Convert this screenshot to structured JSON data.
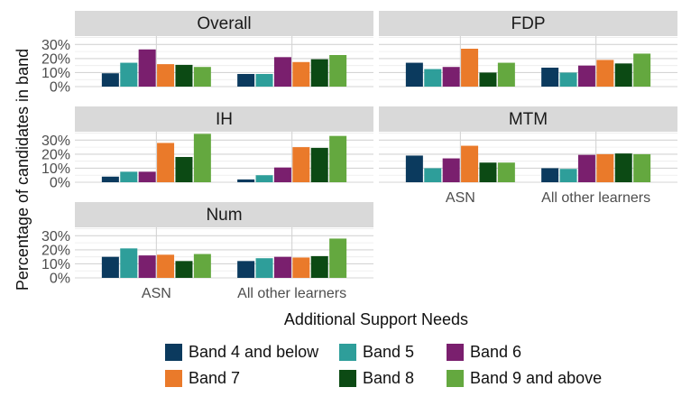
{
  "chart_data": {
    "type": "bar",
    "xlabel": "Additional Support Needs",
    "ylabel": "Percentage of candidates in band",
    "categories": [
      "ASN",
      "All other learners"
    ],
    "y_ticks": [
      "0%",
      "10%",
      "20%",
      "30%"
    ],
    "ylim": [
      0,
      36
    ],
    "grid": true,
    "legend_position": "bottom",
    "series": [
      {
        "name": "Band 4 and below",
        "color": "#0b3a5e"
      },
      {
        "name": "Band 5",
        "color": "#2e9e9a"
      },
      {
        "name": "Band 6",
        "color": "#7a1f6e"
      },
      {
        "name": "Band 7",
        "color": "#ea7a2a"
      },
      {
        "name": "Band 8",
        "color": "#0c4a14"
      },
      {
        "name": "Band 9 and above",
        "color": "#64a83f"
      }
    ],
    "panels": [
      {
        "title": "Overall",
        "values": [
          [
            9.5,
            17,
            26.5,
            16,
            15.5,
            14
          ],
          [
            9,
            9,
            21,
            17.5,
            19.5,
            22.5
          ]
        ]
      },
      {
        "title": "FDP",
        "values": [
          [
            17,
            12.5,
            14,
            27,
            10,
            17
          ],
          [
            13.5,
            10,
            15,
            19,
            16.5,
            23.5
          ]
        ]
      },
      {
        "title": "IH",
        "values": [
          [
            4,
            7.5,
            7.5,
            28,
            18,
            34.5
          ],
          [
            2,
            5,
            10.5,
            25,
            24.5,
            33
          ]
        ]
      },
      {
        "title": "MTM",
        "values": [
          [
            19,
            10,
            17,
            26,
            14,
            14
          ],
          [
            10,
            9.5,
            19.5,
            20,
            20.5,
            20
          ]
        ]
      },
      {
        "title": "Num",
        "values": [
          [
            15,
            21,
            16,
            16.5,
            12,
            17
          ],
          [
            12,
            14,
            15,
            14.5,
            15.5,
            28
          ]
        ]
      }
    ]
  }
}
